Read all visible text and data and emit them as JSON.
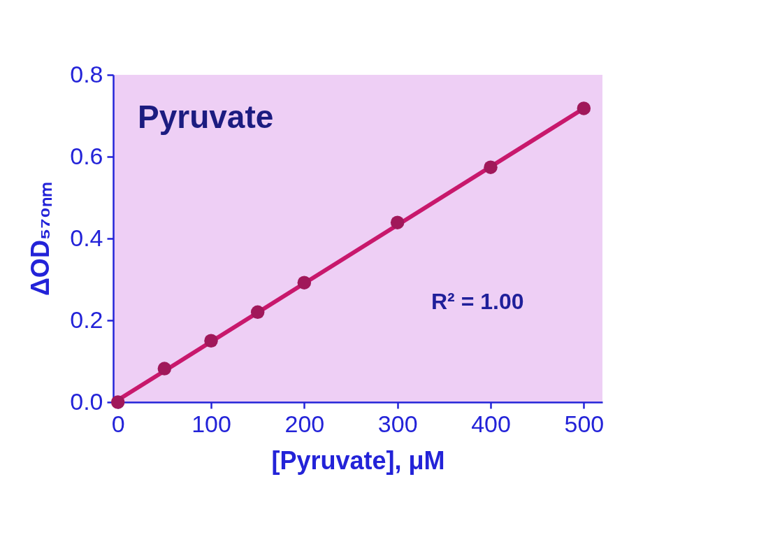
{
  "chart_data": {
    "type": "scatter",
    "title": "Pyruvate",
    "xlabel": "[Pyruvate], μM",
    "ylabel": "ΔOD₅₇₀ₙₘ",
    "annotations": [
      "R² = 1.00"
    ],
    "xlim": [
      -5,
      520
    ],
    "xticks": [
      0,
      100,
      200,
      300,
      400,
      500
    ],
    "ylim": [
      0,
      0.8
    ],
    "yticks": [
      {
        "value": 0,
        "label": "0.0"
      },
      {
        "value": 0.2,
        "label": "0.2"
      },
      {
        "value": 0.4,
        "label": "0.4"
      },
      {
        "value": 0.6,
        "label": "0.6"
      },
      {
        "value": 0.8,
        "label": "0.8"
      }
    ],
    "grid": false,
    "marker": "circle",
    "series": [
      {
        "type": "scatter",
        "color": "#a0185a",
        "x": [
          0,
          50,
          100,
          150,
          200,
          300,
          400,
          500
        ],
        "values": [
          0.0,
          0.082,
          0.15,
          0.22,
          0.292,
          0.439,
          0.574,
          0.718
        ]
      },
      {
        "type": "line",
        "color": "#c8186c",
        "marker": "none",
        "x": [
          0,
          500
        ],
        "values": [
          0.005,
          0.718
        ]
      }
    ]
  }
}
